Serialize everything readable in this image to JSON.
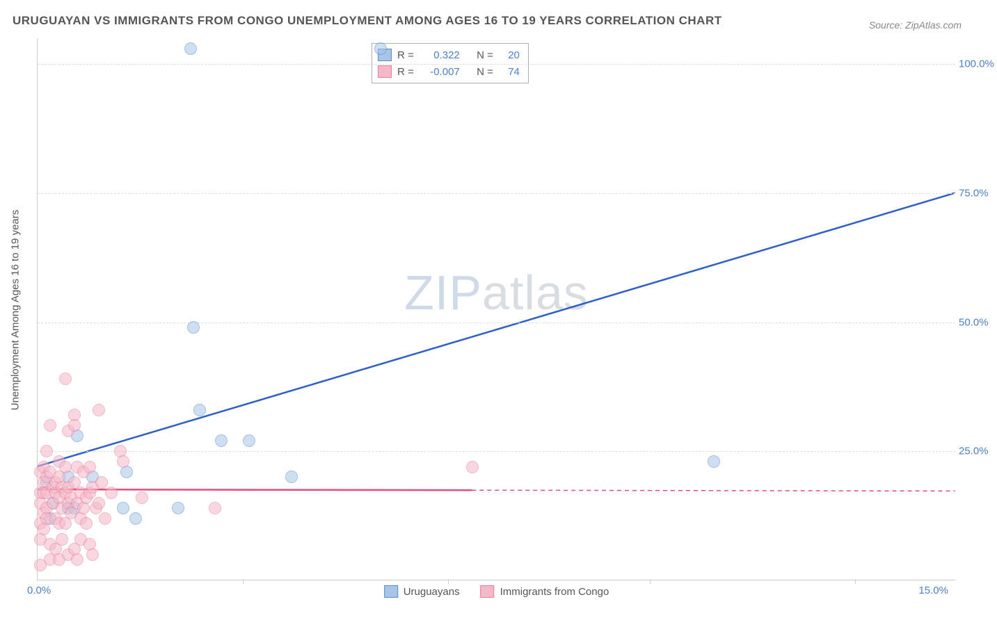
{
  "chart": {
    "type": "scatter",
    "title": "URUGUAYAN VS IMMIGRANTS FROM CONGO UNEMPLOYMENT AMONG AGES 16 TO 19 YEARS CORRELATION CHART",
    "source": "Source: ZipAtlas.com",
    "y_axis_label": "Unemployment Among Ages 16 to 19 years",
    "watermark_zip": "ZIP",
    "watermark_atlas": "atlas",
    "background_color": "#ffffff",
    "grid_color": "#dddddd",
    "axis_color": "#cccccc",
    "label_color": "#555555",
    "tick_color": "#4a7fc9",
    "xlim": [
      0,
      15
    ],
    "ylim": [
      0,
      105
    ],
    "x_ticks": [
      {
        "pos": 0,
        "label": "0.0%",
        "align": "left"
      },
      {
        "pos": 15,
        "label": "15.0%",
        "align": "right"
      }
    ],
    "x_tick_marks": [
      3.35,
      6.7,
      10.0,
      13.35
    ],
    "y_ticks": [
      {
        "pos": 25,
        "label": "25.0%"
      },
      {
        "pos": 50,
        "label": "50.0%"
      },
      {
        "pos": 75,
        "label": "75.0%"
      },
      {
        "pos": 100,
        "label": "100.0%"
      }
    ],
    "series": [
      {
        "name": "Uruguayans",
        "fill_color": "#a8c5e8",
        "stroke_color": "#5a8cc9",
        "marker_radius": 9,
        "fill_opacity": 0.55,
        "r_value": "0.322",
        "n_value": "20",
        "trend": {
          "x1": 0,
          "y1": 22,
          "x2": 15,
          "y2": 75,
          "solid_end_x": 15,
          "color": "#2e5fc9",
          "width": 2.5
        },
        "points": [
          [
            0.15,
            19
          ],
          [
            0.2,
            12
          ],
          [
            0.25,
            15
          ],
          [
            0.5,
            20
          ],
          [
            0.5,
            14
          ],
          [
            0.6,
            14
          ],
          [
            0.65,
            28
          ],
          [
            0.9,
            20
          ],
          [
            1.4,
            14
          ],
          [
            1.45,
            21
          ],
          [
            1.6,
            12
          ],
          [
            2.3,
            14
          ],
          [
            2.5,
            103
          ],
          [
            2.55,
            49
          ],
          [
            2.65,
            33
          ],
          [
            3.0,
            27
          ],
          [
            3.45,
            27
          ],
          [
            4.15,
            20
          ],
          [
            5.6,
            103
          ],
          [
            11.05,
            23
          ]
        ]
      },
      {
        "name": "Immigrants from Congo",
        "fill_color": "#f4b8c8",
        "stroke_color": "#e87f9e",
        "marker_radius": 9,
        "fill_opacity": 0.55,
        "r_value": "-0.007",
        "n_value": "74",
        "trend": {
          "x1": 0,
          "y1": 17.5,
          "x2": 15,
          "y2": 17.2,
          "solid_end_x": 7.1,
          "color": "#e84a7a",
          "width": 2.5
        },
        "points": [
          [
            0.05,
            21
          ],
          [
            0.05,
            17
          ],
          [
            0.05,
            15
          ],
          [
            0.05,
            11
          ],
          [
            0.05,
            8
          ],
          [
            0.1,
            22
          ],
          [
            0.1,
            19
          ],
          [
            0.1,
            17
          ],
          [
            0.1,
            13
          ],
          [
            0.1,
            10
          ],
          [
            0.15,
            25
          ],
          [
            0.15,
            20
          ],
          [
            0.15,
            17
          ],
          [
            0.15,
            14
          ],
          [
            0.15,
            12
          ],
          [
            0.2,
            30
          ],
          [
            0.2,
            21
          ],
          [
            0.2,
            7
          ],
          [
            0.2,
            4
          ],
          [
            0.25,
            18
          ],
          [
            0.25,
            15
          ],
          [
            0.3,
            19
          ],
          [
            0.3,
            17
          ],
          [
            0.3,
            12
          ],
          [
            0.3,
            6
          ],
          [
            0.35,
            23
          ],
          [
            0.35,
            20
          ],
          [
            0.35,
            16
          ],
          [
            0.35,
            11
          ],
          [
            0.35,
            4
          ],
          [
            0.4,
            18
          ],
          [
            0.4,
            14
          ],
          [
            0.4,
            8
          ],
          [
            0.45,
            39
          ],
          [
            0.45,
            22
          ],
          [
            0.45,
            17
          ],
          [
            0.45,
            11
          ],
          [
            0.5,
            29
          ],
          [
            0.5,
            18
          ],
          [
            0.5,
            15
          ],
          [
            0.5,
            5
          ],
          [
            0.55,
            16
          ],
          [
            0.55,
            13
          ],
          [
            0.6,
            32
          ],
          [
            0.6,
            30
          ],
          [
            0.6,
            19
          ],
          [
            0.6,
            6
          ],
          [
            0.65,
            22
          ],
          [
            0.65,
            15
          ],
          [
            0.65,
            4
          ],
          [
            0.7,
            17
          ],
          [
            0.7,
            12
          ],
          [
            0.7,
            8
          ],
          [
            0.75,
            21
          ],
          [
            0.75,
            14
          ],
          [
            0.8,
            16
          ],
          [
            0.8,
            11
          ],
          [
            0.85,
            22
          ],
          [
            0.85,
            17
          ],
          [
            0.85,
            7
          ],
          [
            0.9,
            18
          ],
          [
            0.9,
            5
          ],
          [
            0.95,
            14
          ],
          [
            1.0,
            33
          ],
          [
            1.0,
            15
          ],
          [
            1.05,
            19
          ],
          [
            1.1,
            12
          ],
          [
            1.2,
            17
          ],
          [
            1.35,
            25
          ],
          [
            1.4,
            23
          ],
          [
            1.7,
            16
          ],
          [
            2.9,
            14
          ],
          [
            7.1,
            22
          ],
          [
            0.05,
            3
          ]
        ]
      }
    ],
    "corr_legend": {
      "r_label": "R =",
      "n_label": "N ="
    }
  }
}
